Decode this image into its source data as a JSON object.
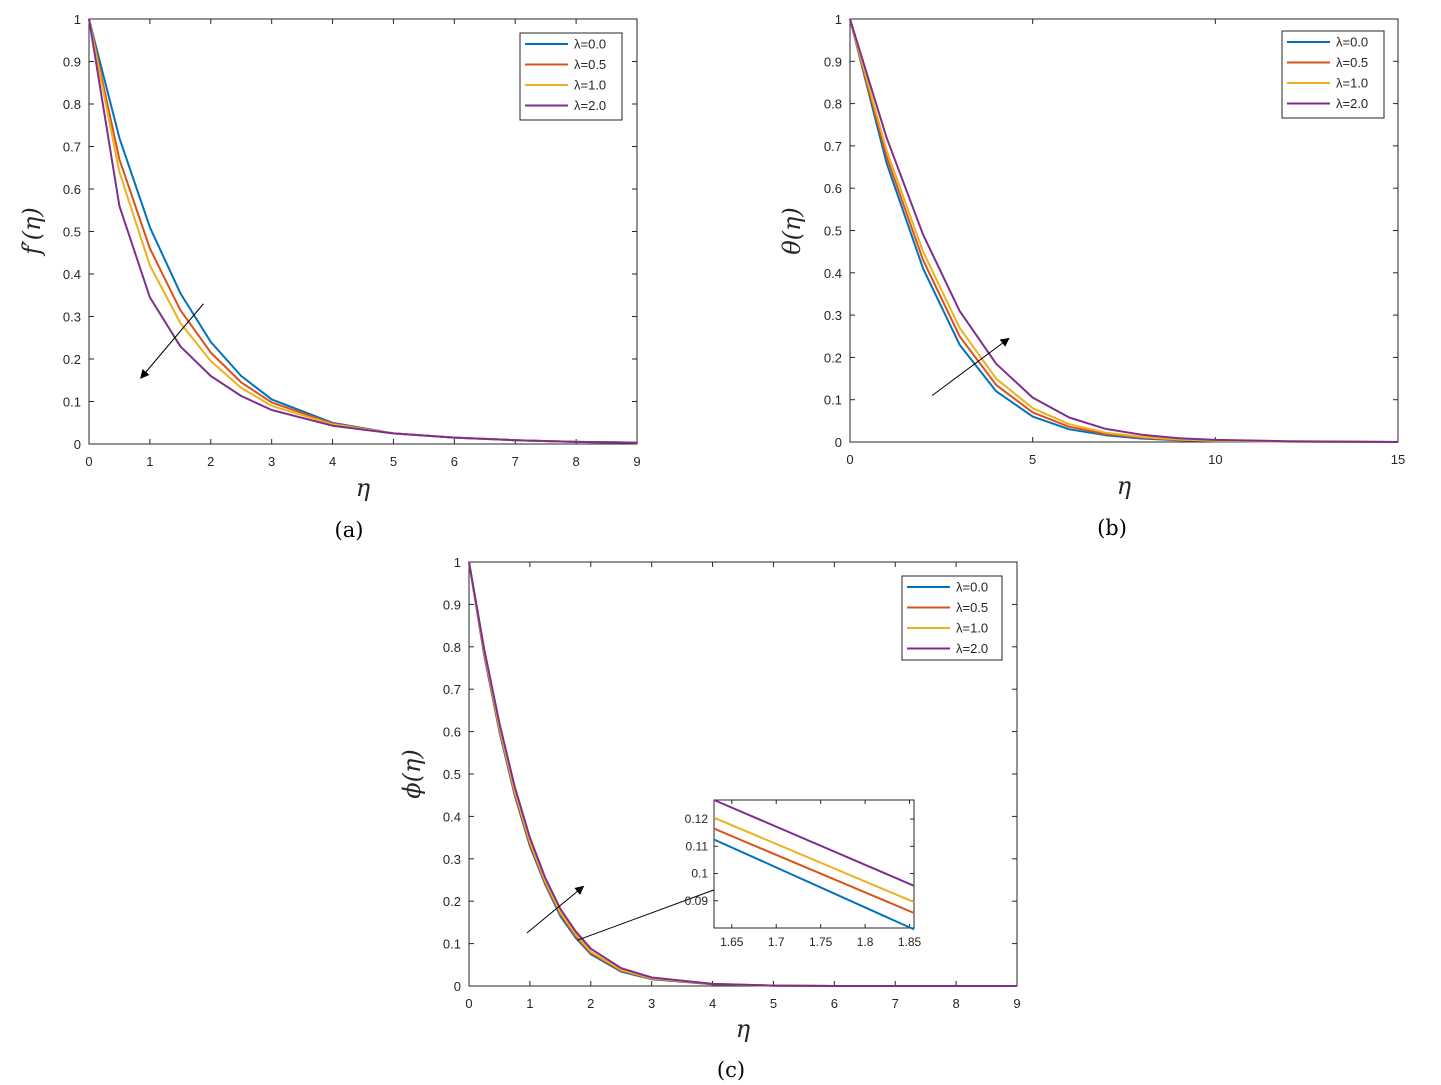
{
  "chart_data": [
    {
      "type": "line",
      "panel_caption": "(a)",
      "xlabel": "η",
      "ylabel": "f′(η)",
      "xlim": [
        0,
        9
      ],
      "ylim": [
        0,
        1
      ],
      "xticks": [
        "0",
        "1",
        "2",
        "3",
        "4",
        "5",
        "6",
        "7",
        "8",
        "9"
      ],
      "yticks": [
        "0",
        "0.1",
        "0.2",
        "0.3",
        "0.4",
        "0.5",
        "0.6",
        "0.7",
        "0.8",
        "0.9",
        "1"
      ],
      "legend_position": "top-right",
      "grid": false,
      "x": [
        0,
        0.5,
        1,
        1.5,
        2,
        2.5,
        3,
        4,
        5,
        6,
        7,
        8,
        9
      ],
      "series": [
        {
          "name": "λ=0.0",
          "color": "#0072BD",
          "values": [
            1,
            0.72,
            0.51,
            0.355,
            0.24,
            0.16,
            0.105,
            0.05,
            0.025,
            0.015,
            0.009,
            0.005,
            0.003
          ]
        },
        {
          "name": "λ=0.5",
          "color": "#D95319",
          "values": [
            1,
            0.67,
            0.46,
            0.315,
            0.215,
            0.145,
            0.098,
            0.048,
            0.025,
            0.015,
            0.009,
            0.005,
            0.003
          ]
        },
        {
          "name": "λ=1.0",
          "color": "#EDB120",
          "values": [
            1,
            0.64,
            0.42,
            0.285,
            0.195,
            0.132,
            0.09,
            0.046,
            0.025,
            0.015,
            0.009,
            0.005,
            0.003
          ]
        },
        {
          "name": "λ=2.0",
          "color": "#7E2F8E",
          "values": [
            1,
            0.56,
            0.345,
            0.23,
            0.16,
            0.113,
            0.08,
            0.043,
            0.025,
            0.015,
            0.009,
            0.005,
            0.003
          ]
        }
      ],
      "annotation_arrow": {
        "from": [
          1.88,
          0.33
        ],
        "to": [
          0.85,
          0.155
        ]
      }
    },
    {
      "type": "line",
      "panel_caption": "(b)",
      "xlabel": "η",
      "ylabel": "θ(η)",
      "xlim": [
        0,
        15
      ],
      "ylim": [
        0,
        1
      ],
      "xticks": [
        "0",
        "5",
        "10",
        "15"
      ],
      "yticks": [
        "0",
        "0.1",
        "0.2",
        "0.3",
        "0.4",
        "0.5",
        "0.6",
        "0.7",
        "0.8",
        "0.9",
        "1"
      ],
      "legend_position": "top-right",
      "grid": false,
      "x": [
        0,
        1,
        2,
        3,
        4,
        5,
        6,
        7,
        8,
        9,
        10,
        12,
        15
      ],
      "series": [
        {
          "name": "λ=0.0",
          "color": "#0072BD",
          "values": [
            1,
            0.66,
            0.41,
            0.23,
            0.12,
            0.06,
            0.03,
            0.016,
            0.008,
            0.004,
            0.002,
            0.001,
            0
          ]
        },
        {
          "name": "λ=0.5",
          "color": "#D95319",
          "values": [
            1,
            0.675,
            0.43,
            0.25,
            0.135,
            0.07,
            0.036,
            0.019,
            0.01,
            0.005,
            0.003,
            0.001,
            0
          ]
        },
        {
          "name": "λ=1.0",
          "color": "#EDB120",
          "values": [
            1,
            0.69,
            0.45,
            0.27,
            0.15,
            0.08,
            0.042,
            0.022,
            0.012,
            0.006,
            0.003,
            0.001,
            0
          ]
        },
        {
          "name": "λ=2.0",
          "color": "#7E2F8E",
          "values": [
            1,
            0.72,
            0.49,
            0.31,
            0.185,
            0.105,
            0.058,
            0.031,
            0.017,
            0.009,
            0.005,
            0.002,
            0
          ]
        }
      ],
      "annotation_arrow": {
        "from": [
          2.25,
          0.11
        ],
        "to": [
          4.35,
          0.245
        ]
      }
    },
    {
      "type": "line",
      "panel_caption": "(c)",
      "xlabel": "η",
      "ylabel": "ϕ(η)",
      "xlim": [
        0,
        9
      ],
      "ylim": [
        0,
        1
      ],
      "xticks": [
        "0",
        "1",
        "2",
        "3",
        "4",
        "5",
        "6",
        "7",
        "8",
        "9"
      ],
      "yticks": [
        "0",
        "0.1",
        "0.2",
        "0.3",
        "0.4",
        "0.5",
        "0.6",
        "0.7",
        "0.8",
        "0.9",
        "1"
      ],
      "legend_position": "top-right",
      "grid": false,
      "x": [
        0,
        0.25,
        0.5,
        0.75,
        1,
        1.25,
        1.5,
        1.75,
        2,
        2.5,
        3,
        4,
        5,
        6,
        7,
        8,
        9
      ],
      "series": [
        {
          "name": "λ=0.0",
          "color": "#0072BD",
          "values": [
            1,
            0.78,
            0.6,
            0.45,
            0.33,
            0.24,
            0.165,
            0.114,
            0.075,
            0.034,
            0.016,
            0.004,
            0.001,
            0,
            0,
            0,
            0
          ]
        },
        {
          "name": "λ=0.5",
          "color": "#D95319",
          "values": [
            1,
            0.785,
            0.605,
            0.455,
            0.335,
            0.244,
            0.17,
            0.118,
            0.078,
            0.036,
            0.017,
            0.004,
            0.001,
            0,
            0,
            0,
            0
          ]
        },
        {
          "name": "λ=1.0",
          "color": "#EDB120",
          "values": [
            1,
            0.79,
            0.61,
            0.46,
            0.34,
            0.248,
            0.174,
            0.122,
            0.081,
            0.038,
            0.018,
            0.005,
            0.001,
            0,
            0,
            0,
            0
          ]
        },
        {
          "name": "λ=2.0",
          "color": "#7E2F8E",
          "values": [
            1,
            0.795,
            0.62,
            0.47,
            0.35,
            0.256,
            0.182,
            0.129,
            0.088,
            0.042,
            0.02,
            0.005,
            0.001,
            0,
            0,
            0,
            0
          ]
        }
      ],
      "annotation_arrow": {
        "from": [
          0.95,
          0.125
        ],
        "to": [
          1.88,
          0.235
        ]
      },
      "inset": {
        "xlim": [
          1.63,
          1.855
        ],
        "ylim": [
          0.08,
          0.127
        ],
        "xticks": [
          "1.65",
          "1.7",
          "1.75",
          "1.8",
          "1.85"
        ],
        "yticks": [
          "0.09",
          "0.1",
          "0.11",
          "0.12"
        ],
        "x": [
          1.63,
          1.855
        ],
        "series": [
          {
            "name": "λ=0.0",
            "color": "#0072BD",
            "values": [
              0.1125,
              0.0795
            ]
          },
          {
            "name": "λ=0.5",
            "color": "#D95319",
            "values": [
              0.1165,
              0.0855
            ]
          },
          {
            "name": "λ=1.0",
            "color": "#EDB120",
            "values": [
              0.1205,
              0.0895
            ]
          },
          {
            "name": "λ=2.0",
            "color": "#7E2F8E",
            "values": [
              0.127,
              0.0955
            ]
          }
        ]
      }
    }
  ]
}
